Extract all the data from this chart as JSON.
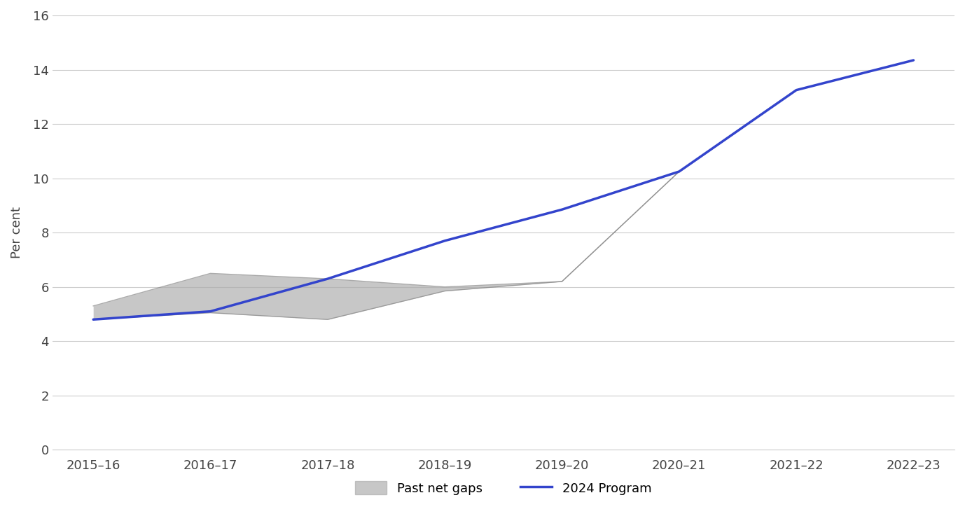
{
  "x_labels": [
    "2015–16",
    "2016–17",
    "2017–18",
    "2018–19",
    "2019–20",
    "2020–21",
    "2021–22",
    "2022–23"
  ],
  "x_positions": [
    0,
    1,
    2,
    3,
    4,
    5,
    6,
    7
  ],
  "program_2024": [
    4.8,
    5.1,
    6.3,
    7.7,
    8.85,
    10.25,
    13.25,
    14.35
  ],
  "past_upper": [
    5.3,
    6.5,
    6.3,
    6.0,
    6.2,
    10.25,
    13.25,
    14.35
  ],
  "past_lower": [
    4.8,
    5.05,
    4.8,
    5.85,
    6.2,
    10.25,
    13.25,
    14.35
  ],
  "program_color": "#3344cc",
  "fill_color": "#aaaaaa",
  "fill_alpha": 0.65,
  "ylabel": "Per cent",
  "ylim": [
    0,
    16
  ],
  "yticks": [
    0,
    2,
    4,
    6,
    8,
    10,
    12,
    14,
    16
  ],
  "grid_color": "#cccccc",
  "bg_color": "#ffffff",
  "legend_patch_label": "Past net gaps",
  "legend_line_label": "2024 Program",
  "line_width": 2.5
}
